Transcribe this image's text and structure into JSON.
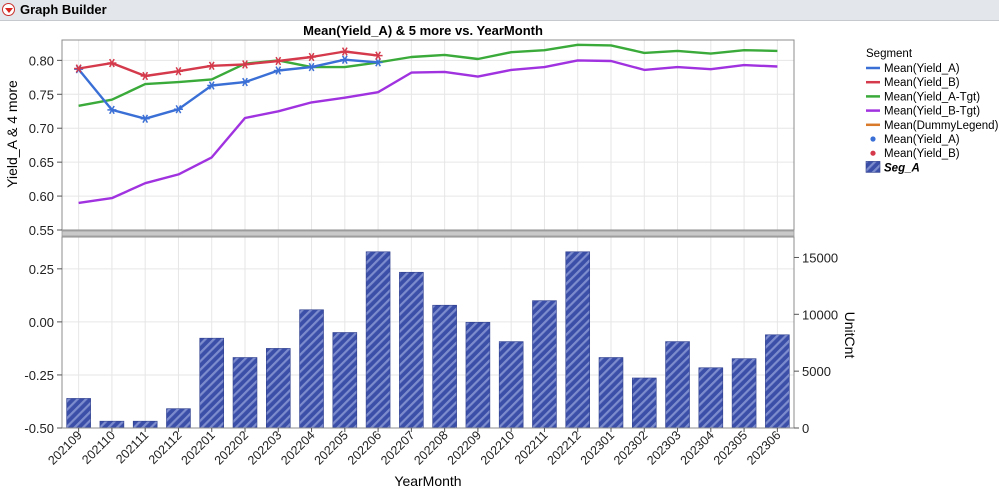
{
  "panel": {
    "title": "Graph Builder"
  },
  "chart_data": {
    "type": "line",
    "title": "Mean(Yield_A) & 5 more vs. YearMonth",
    "xlabel": "YearMonth",
    "categories": [
      "202109",
      "202110",
      "202111",
      "202112",
      "202201",
      "202202",
      "202203",
      "202204",
      "202205",
      "202206",
      "202207",
      "202208",
      "202209",
      "202210",
      "202211",
      "202212",
      "202301",
      "202302",
      "202303",
      "202304",
      "202305",
      "202306"
    ],
    "top_panel": {
      "ylabel": "Yield_A & 4 more",
      "ylim": [
        0.55,
        0.83
      ],
      "yticks": [
        "0.55",
        "0.60",
        "0.65",
        "0.70",
        "0.75",
        "0.80"
      ],
      "series": [
        {
          "name": "Mean(Yield_A-Tgt)",
          "color": "#3aaa3a",
          "marker": false,
          "values": [
            0.733,
            0.742,
            0.765,
            0.768,
            0.772,
            0.795,
            0.8,
            0.79,
            0.79,
            0.797,
            0.805,
            0.808,
            0.802,
            0.812,
            0.815,
            0.823,
            0.822,
            0.811,
            0.814,
            0.81,
            0.815,
            0.814
          ]
        },
        {
          "name": "Mean(Yield_B-Tgt)",
          "color": "#a032e0",
          "marker": false,
          "values": [
            0.59,
            0.597,
            0.619,
            0.632,
            0.657,
            0.715,
            0.725,
            0.738,
            0.745,
            0.753,
            0.782,
            0.783,
            0.776,
            0.786,
            0.79,
            0.8,
            0.799,
            0.786,
            0.79,
            0.787,
            0.793,
            0.791
          ]
        },
        {
          "name": "Mean(Yield_A)",
          "color": "#3a6fd6",
          "marker": true,
          "values": [
            0.787,
            0.727,
            0.714,
            0.728,
            0.763,
            0.768,
            0.785,
            0.79,
            0.801,
            0.797,
            null,
            null,
            null,
            null,
            null,
            null,
            null,
            null,
            null,
            null,
            null,
            null
          ]
        },
        {
          "name": "Mean(Yield_B)",
          "color": "#d43a4b",
          "marker": true,
          "values": [
            0.788,
            0.796,
            0.777,
            0.784,
            0.792,
            0.794,
            0.799,
            0.805,
            0.813,
            0.807,
            null,
            null,
            null,
            null,
            null,
            null,
            null,
            null,
            null,
            null,
            null,
            null
          ]
        }
      ]
    },
    "bottom_panel": {
      "left_ylim": [
        -0.5,
        0.4
      ],
      "left_yticks": [
        "-0.50",
        "-0.25",
        "0.00",
        "0.25"
      ],
      "right_ylabel": "UnitCnt",
      "right_ylim": [
        0,
        16800
      ],
      "right_yticks": [
        "0",
        "5000",
        "10000",
        "15000"
      ],
      "bar_series": {
        "name": "Seg_A",
        "color": "#3b4fa8",
        "values": [
          2600,
          600,
          600,
          1700,
          7900,
          6200,
          7000,
          10400,
          8400,
          15500,
          13700,
          10800,
          9300,
          7600,
          11200,
          15500,
          6200,
          4400,
          7600,
          5300,
          6100,
          8200
        ]
      }
    },
    "legend": {
      "title": "Segment",
      "placement": "right",
      "entries": [
        {
          "label": "Mean(Yield_A)",
          "kind": "line",
          "color": "#3a6fd6"
        },
        {
          "label": "Mean(Yield_B)",
          "kind": "line",
          "color": "#d43a4b"
        },
        {
          "label": "Mean(Yield_A-Tgt)",
          "kind": "line",
          "color": "#3aaa3a"
        },
        {
          "label": "Mean(Yield_B-Tgt)",
          "kind": "line",
          "color": "#a032e0"
        },
        {
          "label": "Mean(DummyLegend)",
          "kind": "line",
          "color": "#d97a2b"
        },
        {
          "label": "Mean(Yield_A)",
          "kind": "dot",
          "color": "#3a6fd6"
        },
        {
          "label": "Mean(Yield_B)",
          "kind": "dot",
          "color": "#d43a4b"
        },
        {
          "label": "Seg_A",
          "kind": "bar",
          "color": "#3b4fa8"
        }
      ]
    },
    "grid": true
  }
}
